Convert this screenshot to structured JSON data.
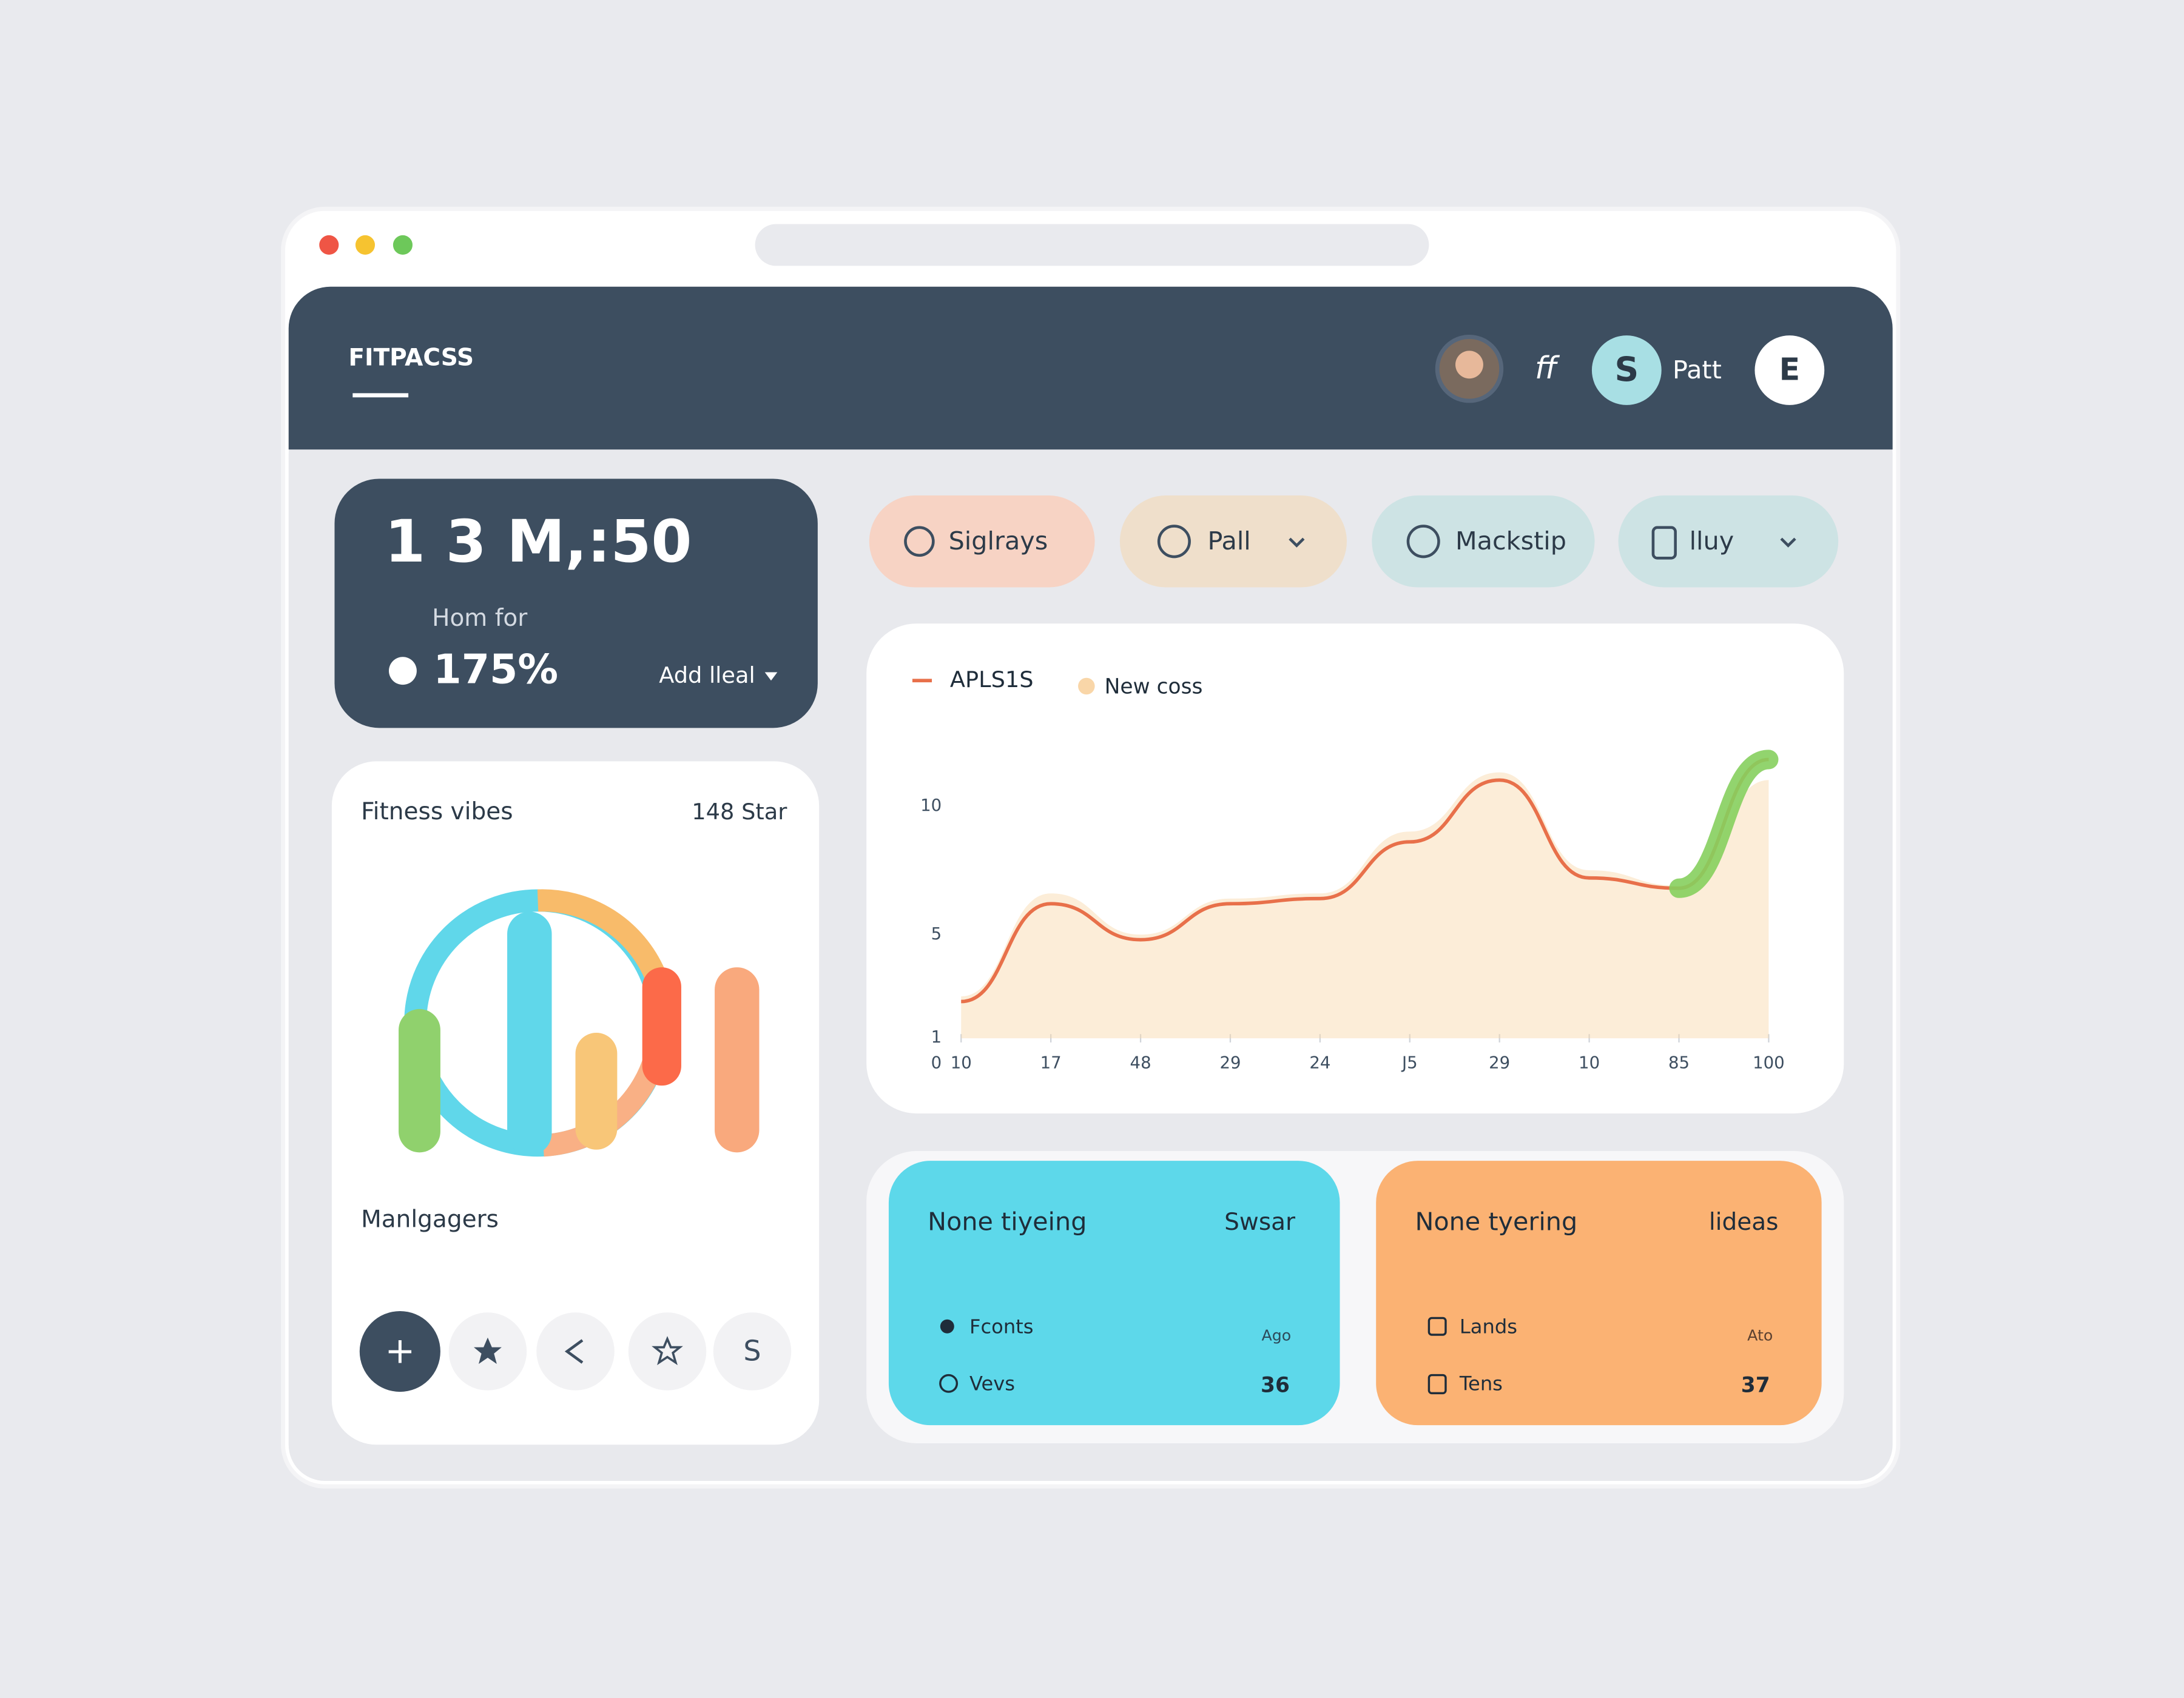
{
  "header": {
    "brand": "FITPACSS",
    "user_initials": "ff",
    "avatar_letter": "S",
    "user_name": "Patt",
    "menu_letter": "E"
  },
  "stat_card": {
    "value": "1 3 M,:50",
    "caption": "Hom for",
    "percent": "175%",
    "action": "Add lleal"
  },
  "filters": [
    "Siglrays",
    "Pall",
    "Mackstip",
    "lluy"
  ],
  "chart_data": {
    "type": "line",
    "categories": [
      "10",
      "17",
      "48",
      "29",
      "24",
      "J5",
      "29",
      "10",
      "85",
      "100"
    ],
    "series": [
      {
        "name": "APLS1S",
        "color": "#e8704a",
        "values": [
          2.4,
          6.2,
          4.8,
          6.2,
          6.4,
          8.6,
          11.0,
          7.2,
          6.8,
          11.8
        ]
      },
      {
        "name": "New coss",
        "color": "#f9d6a8",
        "values": [
          2.6,
          6.6,
          5.0,
          6.4,
          6.6,
          9.0,
          11.3,
          7.5,
          6.9,
          11.0
        ]
      }
    ],
    "ylim": [
      0,
      12
    ],
    "yticks": [
      0,
      1,
      5,
      10
    ],
    "highlight_color": "#86cf5e"
  },
  "activity_card": {
    "title": "Fitness vibes",
    "stat": "148 Star",
    "subtitle": "Manlgagers",
    "buttons": [
      "+",
      "S"
    ]
  },
  "info_cards": [
    {
      "title": "None tiyeing",
      "tag": "Swsar",
      "row1": "Fconts",
      "row1_note": "Ago",
      "row2": "Vevs",
      "row2_value": "36"
    },
    {
      "title": "None tyering",
      "tag": "lideas",
      "row1": "Lands",
      "row1_note": "Ato",
      "row2": "Tens",
      "row2_value": "37"
    }
  ]
}
